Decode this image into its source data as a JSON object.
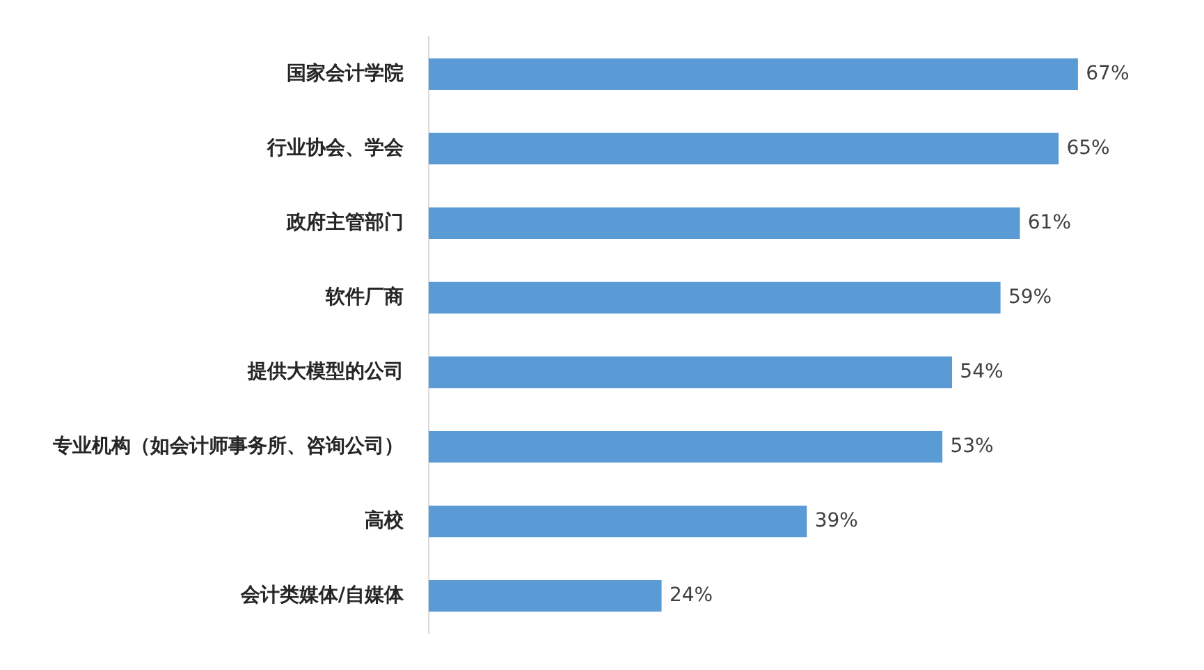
{
  "chart_data": {
    "type": "bar",
    "orientation": "horizontal",
    "categories": [
      "国家会计学院",
      "行业协会、学会",
      "政府主管部门",
      "软件厂商",
      "提供大模型的公司",
      "专业机构（如会计师事务所、咨询公司）",
      "高校",
      "会计类媒体/自媒体"
    ],
    "values": [
      67,
      65,
      61,
      59,
      54,
      53,
      39,
      24
    ],
    "value_labels": [
      "67%",
      "65%",
      "61%",
      "59%",
      "54%",
      "53%",
      "39%",
      "24%"
    ],
    "color": "#5b9bd5",
    "legend": false,
    "tick_labels": "y"
  }
}
